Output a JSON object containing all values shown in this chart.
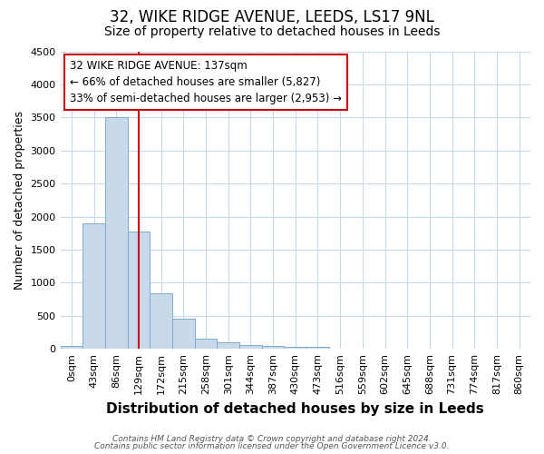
{
  "title": "32, WIKE RIDGE AVENUE, LEEDS, LS17 9NL",
  "subtitle": "Size of property relative to detached houses in Leeds",
  "xlabel": "Distribution of detached houses by size in Leeds",
  "ylabel": "Number of detached properties",
  "bar_labels": [
    "0sqm",
    "43sqm",
    "86sqm",
    "129sqm",
    "172sqm",
    "215sqm",
    "258sqm",
    "301sqm",
    "344sqm",
    "387sqm",
    "430sqm",
    "473sqm",
    "516sqm",
    "559sqm",
    "602sqm",
    "645sqm",
    "688sqm",
    "731sqm",
    "774sqm",
    "817sqm",
    "860sqm"
  ],
  "bar_values": [
    40,
    1900,
    3500,
    1775,
    840,
    450,
    160,
    95,
    55,
    40,
    30,
    30,
    0,
    0,
    0,
    0,
    0,
    0,
    0,
    0,
    0
  ],
  "bar_color": "#c8daea",
  "bar_edge_color": "#7aadd4",
  "annotation_line1": "32 WIKE RIDGE AVENUE: 137sqm",
  "annotation_line2": "← 66% of detached houses are smaller (5,827)",
  "annotation_line3": "33% of semi-detached houses are larger (2,953) →",
  "vline_pos": 3.0,
  "vline_color": "#cc0000",
  "ylim": [
    0,
    4500
  ],
  "yticks": [
    0,
    500,
    1000,
    1500,
    2000,
    2500,
    3000,
    3500,
    4000,
    4500
  ],
  "annotation_box_facecolor": "#ffffff",
  "annotation_box_edgecolor": "#cc0000",
  "footer1": "Contains HM Land Registry data © Crown copyright and database right 2024.",
  "footer2": "Contains public sector information licensed under the Open Government Licence v3.0.",
  "bg_color": "#ffffff",
  "plot_bg_color": "#ffffff",
  "grid_color": "#c8d8ea",
  "title_fontsize": 12,
  "subtitle_fontsize": 10,
  "xlabel_fontsize": 11,
  "ylabel_fontsize": 9,
  "tick_fontsize": 8,
  "annot_fontsize": 8.5,
  "footer_fontsize": 6.5
}
